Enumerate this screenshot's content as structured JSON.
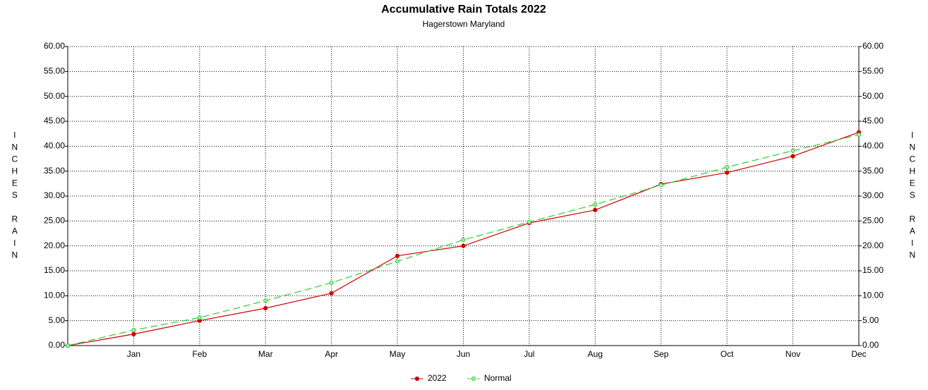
{
  "chart_data": {
    "type": "line",
    "title": "Accumulative Rain Totals 2022",
    "subtitle": "Hagerstown Maryland",
    "y_label": "INCHES RAIN",
    "y2_label": "INCHES RAIN",
    "categories": [
      null,
      "Jan",
      "Feb",
      "Mar",
      "Apr",
      "May",
      "Jun",
      "Jul",
      "Aug",
      "Sep",
      "Oct",
      "Nov",
      "Dec"
    ],
    "series": [
      {
        "name": "2022",
        "color": "#cc0000",
        "values": [
          0,
          2.3,
          5.0,
          7.5,
          10.5,
          18.0,
          20.0,
          24.6,
          27.2,
          32.4,
          34.7,
          38.0,
          42.8
        ]
      },
      {
        "name": "Normal",
        "color": "#33cc33",
        "dashed": true,
        "values": [
          0,
          3.1,
          5.6,
          9.0,
          12.6,
          16.9,
          21.2,
          24.8,
          28.3,
          32.2,
          35.8,
          39.1,
          42.3
        ]
      }
    ],
    "ylim": [
      0,
      60
    ],
    "yticks": [
      {
        "value": 0,
        "label": "0.00"
      },
      {
        "value": 5,
        "label": "5.00"
      },
      {
        "value": 10,
        "label": "10.00"
      },
      {
        "value": 15,
        "label": "15.00"
      },
      {
        "value": 20,
        "label": "20.00"
      },
      {
        "value": 25,
        "label": "25.00"
      },
      {
        "value": 30,
        "label": "30.00"
      },
      {
        "value": 35,
        "label": "35.00"
      },
      {
        "value": 40,
        "label": "40.00"
      },
      {
        "value": 45,
        "label": "45.00"
      },
      {
        "value": 50,
        "label": "50.00"
      },
      {
        "value": 55,
        "label": "55.00"
      },
      {
        "value": 60,
        "label": "60.00"
      }
    ],
    "y2lim": [
      0,
      60
    ],
    "y2ticks": [
      {
        "value": 0,
        "label": "0.00"
      },
      {
        "value": 5,
        "label": "5.00"
      },
      {
        "value": 10,
        "label": "10.00"
      },
      {
        "value": 15,
        "label": "15.00"
      },
      {
        "value": 20,
        "label": "20.00"
      },
      {
        "value": 25,
        "label": "25.00"
      },
      {
        "value": 30,
        "label": "30.00"
      },
      {
        "value": 35,
        "label": "35.00"
      },
      {
        "value": 40,
        "label": "40.00"
      },
      {
        "value": 45,
        "label": "45.00"
      },
      {
        "value": 50,
        "label": "50.00"
      },
      {
        "value": 55,
        "label": "55.00"
      },
      {
        "value": 60,
        "label": "60.00"
      }
    ],
    "grid": true,
    "legend": "bottom"
  }
}
